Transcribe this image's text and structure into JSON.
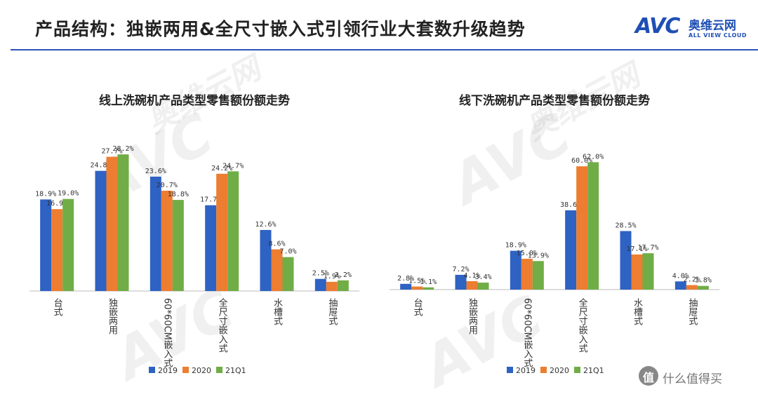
{
  "header": {
    "title": "产品结构：独嵌两用&全尺寸嵌入式引领行业大套数升级趋势",
    "logo_mark": "AVC",
    "logo_cn": "奥维云网",
    "logo_en": "ALL VIEW CLOUD"
  },
  "watermark": {
    "mark": "AVC",
    "cn": "奥维云网",
    "en": "ALL VIEW CLOUD"
  },
  "corner_badge": {
    "icon_glyph": "值",
    "text": "什么值得买"
  },
  "colors": {
    "s2019": "#2e62c3",
    "s2020": "#ed7d31",
    "s21q1": "#70ad47"
  },
  "chart_data": [
    {
      "type": "bar",
      "title": "线上洗碗机产品类型零售额份额走势",
      "categories": [
        "台式",
        "独嵌两用",
        "60*60CM嵌入式",
        "全尺寸嵌入式",
        "水槽式",
        "抽屉式"
      ],
      "series": [
        {
          "name": "2019",
          "values": [
            18.9,
            24.8,
            23.6,
            17.7,
            12.6,
            2.5
          ],
          "labels": [
            "18.9%",
            "24.8%",
            "23.6%",
            "17.7%",
            "12.6%",
            "2.5%"
          ]
        },
        {
          "name": "2020",
          "values": [
            16.9,
            27.7,
            20.7,
            24.2,
            8.6,
            1.9
          ],
          "labels": [
            "16.9%",
            "27.7%",
            "20.7%",
            "24.2%",
            "8.6%",
            "1.9%"
          ]
        },
        {
          "name": "21Q1",
          "values": [
            19.0,
            28.2,
            18.8,
            24.7,
            7.0,
            2.2
          ],
          "labels": [
            "19.0%",
            "28.2%",
            "18.8%",
            "24.7%",
            "7.0%",
            "2.2%"
          ]
        }
      ],
      "ylim": [
        0,
        30
      ],
      "legend": "bottom",
      "grid": false
    },
    {
      "type": "bar",
      "title": "线下洗碗机产品类型零售额份额走势",
      "categories": [
        "台式",
        "独嵌两用",
        "60*60CM嵌入式",
        "全尺寸嵌入式",
        "水槽式",
        "抽屉式"
      ],
      "series": [
        {
          "name": "2019",
          "values": [
            2.8,
            7.2,
            18.9,
            38.6,
            28.5,
            4.0
          ],
          "labels": [
            "2.8%",
            "7.2%",
            "18.9%",
            "38.6%",
            "28.5%",
            "4.0%"
          ]
        },
        {
          "name": "2020",
          "values": [
            1.5,
            4.1,
            15.0,
            60.0,
            17.1,
            2.2
          ],
          "labels": [
            "1.5%",
            "4.1%",
            "15.0%",
            "60.0%",
            "17.1%",
            "2.2%"
          ]
        },
        {
          "name": "21Q1",
          "values": [
            1.1,
            3.4,
            13.9,
            62.0,
            17.7,
            1.8
          ],
          "labels": [
            "1.1%",
            "3.4%",
            "13.9%",
            "62.0%",
            "17.7%",
            "1.8%"
          ]
        }
      ],
      "ylim": [
        0,
        65
      ],
      "legend": "bottom",
      "grid": false
    }
  ]
}
